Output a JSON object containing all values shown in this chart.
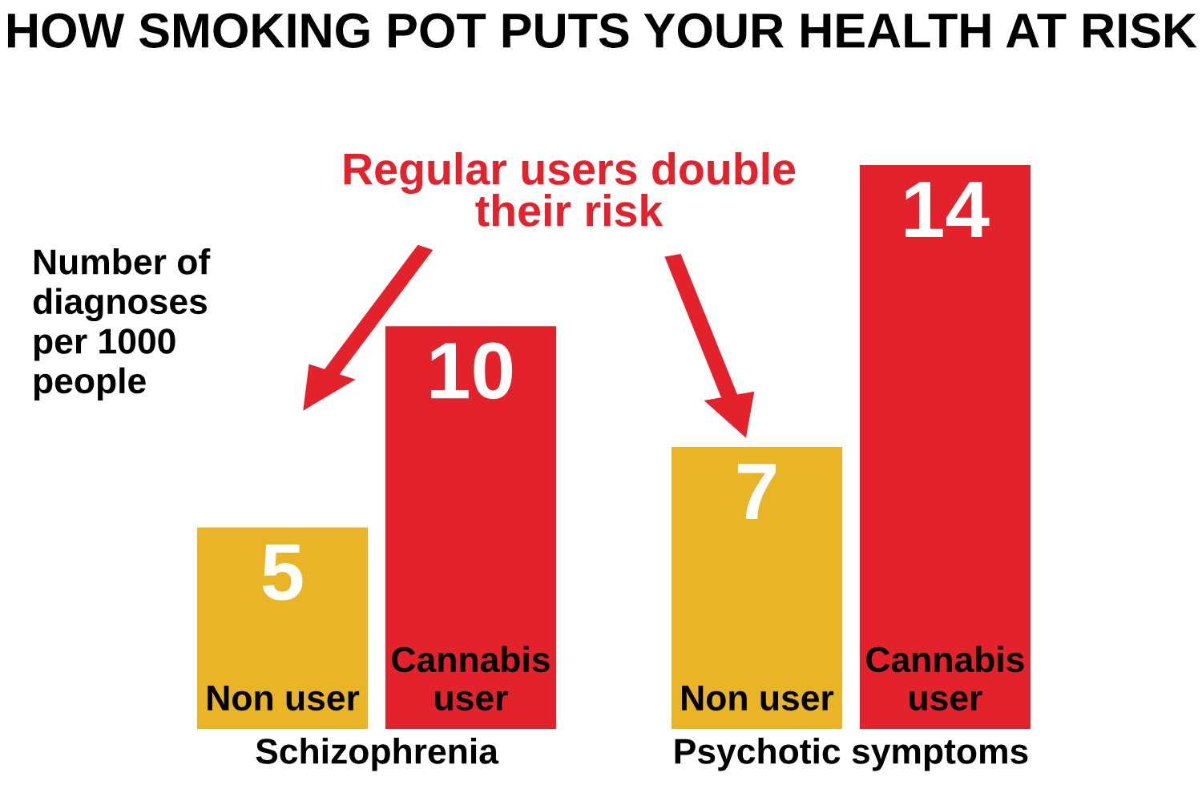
{
  "chart_data": {
    "type": "bar",
    "title": "HOW SMOKING POT PUTS YOUR HEALTH AT RISK",
    "ylabel": "Number of\ndiagnoses\nper 1000\npeople",
    "categories": [
      "Schizophrenia",
      "Psychotic symptoms"
    ],
    "series": [
      {
        "name": "Non user",
        "color": "#e9b425",
        "values": [
          5,
          7
        ]
      },
      {
        "name": "Cannabis user",
        "color": "#e3222b",
        "values": [
          10,
          14
        ]
      }
    ],
    "annotations": [
      "Regular users double\ntheir risk"
    ],
    "data_labels": true,
    "grid": false,
    "legend": false
  }
}
